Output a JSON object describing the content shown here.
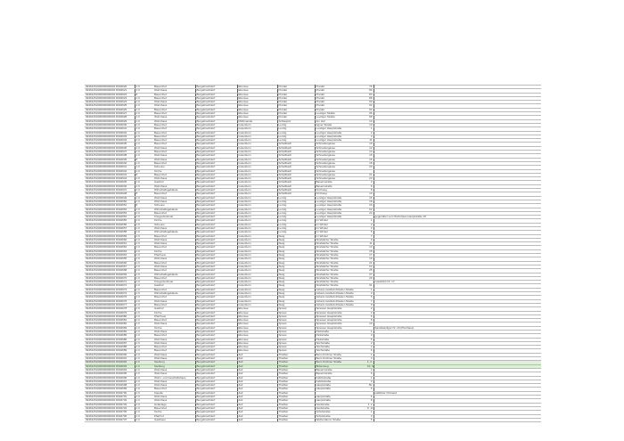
{
  "columns": [
    "ID",
    "Nr",
    "Objekt",
    "Gemeinde",
    "Gemeindeteil",
    "Ort",
    "Straße",
    "Hausnr.",
    "Bemerkung"
  ],
  "rows": [
    [
      "09461151000000000002 D994620",
      "1.0",
      "Bauernhof",
      "Burgebrachdorf",
      "Ebersee",
      "Preidel",
      "Preidel",
      "76",
      ""
    ],
    [
      "09461151000000000002 D994621",
      "1.0",
      "Wohnhaus",
      "Burgebrachdorf",
      "Ebersee",
      "Preidel",
      "Preidel",
      "80",
      ""
    ],
    [
      "09461151000000000002 D994622",
      "8",
      "Bauernhof",
      "Burgebrachdorf",
      "Ebersee",
      "Preidel",
      "Preidel",
      "83",
      ""
    ],
    [
      "09461151000000000002 D994623",
      "1.0",
      "Bauernhof",
      "Burgebrachdorf",
      "Ebersee",
      "Preidel",
      "Preidel",
      "88",
      ""
    ],
    [
      "09461151000000000002 D994624",
      "1.0",
      "Wohnhaus",
      "Burgebrachdorf",
      "Ebersee",
      "Preidel",
      "Preidel",
      "90",
      ""
    ],
    [
      "09461151000000000002 D994625",
      "1.0",
      "Wohnhaus",
      "Burgebrachdorf",
      "Ebersee",
      "Preidel",
      "Preidel",
      "92",
      ""
    ],
    [
      "09461151000000000002 D994626",
      "1.0",
      "Bauernhof",
      "Burgebrachdorf",
      "Ebersee",
      "Preidel",
      "Preidel",
      "94",
      ""
    ],
    [
      "09461151000000000002 D994627",
      "1.0",
      "Bauernhof",
      "Burgebrachdorf",
      "Ebersee",
      "Preidel",
      "Leuziger Straße",
      "96",
      ""
    ],
    [
      "09461151000000000002 D994628",
      "1.0",
      "Wohnhaus",
      "Burgebrachdorf",
      "Ebersee",
      "Preidel",
      "Leuziger Straße",
      "98",
      ""
    ],
    [
      "09461151000000000002 D994629",
      "1.0",
      "Wohnhaus",
      "Burgebrachdorf",
      "Mühlmande",
      "Schlaupitz",
      "Am Hof",
      "13",
      ""
    ],
    [
      "09461151000000000002 D994630",
      "1.0",
      "Bauernhof",
      "Burgebrachdorf",
      "Gutenborn",
      "Lenzig",
      "Agner Straße",
      "10",
      ""
    ],
    [
      "09461151000000000002 D994631",
      "1.0",
      "Bauernhof",
      "Burgebrachdorf",
      "Gutenborn",
      "Lenzig",
      "Leuziger Hauptstraße",
      "1",
      ""
    ],
    [
      "09461151000000000002 D994632",
      "1.0",
      "Bauernhof",
      "Burgebrachdorf",
      "Gutenborn",
      "Lenzig",
      "Leuziger Hauptstraße",
      "2",
      ""
    ],
    [
      "09461151000000000002 D994633",
      "1.0",
      "Bauernhof",
      "Burgebrachdorf",
      "Gutenborn",
      "Lenzig",
      "Leuziger Hauptstraße",
      "4",
      ""
    ],
    [
      "09461151000000000002 D994634",
      "1.0",
      "Bauernhof",
      "Burgebrachdorf",
      "Gutenborn",
      "Lenzig",
      "Leuziger Hauptstraße",
      "11",
      ""
    ],
    [
      "09461151000000000002 D994635",
      "1.0",
      "Bauernhof",
      "Burgebrachdorf",
      "Gutenborn",
      "Schellbach",
      "Schneidergasse",
      "10",
      ""
    ],
    [
      "09461151000000000002 D994636",
      "1.0",
      "Wohnhaus",
      "Burgebrachdorf",
      "Gutenborn",
      "Schellbach",
      "Schneidergasse",
      "12",
      ""
    ],
    [
      "09461151000000000002 D994637",
      "1.0",
      "Bauernhof",
      "Burgebrachdorf",
      "Gutenborn",
      "Schellbach",
      "Schneidergasse",
      "14",
      ""
    ],
    [
      "09461151000000000002 D994638",
      "1.0",
      "Wohnhaus",
      "Burgebrachdorf",
      "Gutenborn",
      "Schellbach",
      "Schneidergasse",
      "15",
      ""
    ],
    [
      "09461151000000000002 D994639",
      "8",
      "Wohnhaus",
      "Burgebrachdorf",
      "Gutenborn",
      "Schellbach",
      "Schneidergasse",
      "16",
      ""
    ],
    [
      "09461151000000000002 D994640",
      "1.0",
      "Bauernhof",
      "Burgebrachdorf",
      "Gutenborn",
      "Schellbach",
      "Schneidergasse",
      "18",
      ""
    ],
    [
      "09461151000000000002 D994641",
      "1.0",
      "Scheune",
      "Burgebrachdorf",
      "Gutenborn",
      "Schellbach",
      "Schneidergasse",
      "20",
      ""
    ],
    [
      "09461151000000000002 D994642",
      "1.0",
      "Kirche",
      "Burgebrachdorf",
      "Gutenborn",
      "Schellbach",
      "Schneidergasse",
      "",
      ""
    ],
    [
      "09461151000000000002 D994643",
      "8",
      "Bauernhof",
      "Burgebrachdorf",
      "Gutenborn",
      "Schellbach",
      "Schneidergasse",
      "21",
      ""
    ],
    [
      "09461151000000000002 D994644",
      "1.0",
      "Wohnhaus",
      "Burgebrachdorf",
      "Gutenborn",
      "Schellbach",
      "Schneidergasse",
      "23",
      ""
    ],
    [
      "09461151000000000002 D994645",
      "1.0",
      "Gasthof",
      "Burgebrachdorf",
      "Gutenborn",
      "Schellbach",
      "Bauernstraße",
      "3",
      ""
    ],
    [
      "09461151000000000002 D994646",
      "1.0",
      "Wohnhaus",
      "Burgebrachdorf",
      "Gutenborn",
      "Schellbach",
      "Bauernstraße",
      "6",
      ""
    ],
    [
      "09461151000000000002 D994647",
      "1.0",
      "Wirtschaftsgebäude",
      "Burgebrachdorf",
      "Gutenborn",
      "Schellbach",
      "Kirchweg",
      "8",
      ""
    ],
    [
      "09461151000000000002 D994648",
      "8",
      "Bauernhof",
      "Burgebrachdorf",
      "Gutenborn",
      "Schellbach",
      "Kirchweg",
      "10",
      ""
    ],
    [
      "09461151000000000002 D994649",
      "1.0",
      "Wohnhaus",
      "Burgebrachdorf",
      "Gutenborn",
      "Lenzig",
      "Leuziger Hauptstraße",
      "16",
      ""
    ],
    [
      "09461151000000000002 D994650",
      "1.0",
      "Wohnhaus",
      "Burgebrachdorf",
      "Gutenborn",
      "Lenzig",
      "Leuziger Hauptstraße",
      "18",
      ""
    ],
    [
      "09461151000000000002 D994651",
      "8",
      "Scheune",
      "Burgebrachdorf",
      "Gutenborn",
      "Lenzig",
      "Leuziger Hauptstraße",
      "20",
      ""
    ],
    [
      "09461151000000000002 D994652",
      "1.0",
      "Wirtschaftsgebäude",
      "Burgebrachdorf",
      "Gutenborn",
      "Lenzig",
      "Leuziger Hauptstraße",
      "22",
      ""
    ],
    [
      "09461151000000000002 D994653",
      "1.0",
      "Bauernhof",
      "Burgebrachdorf",
      "Gutenborn",
      "Lenzig",
      "Leuziger Hauptstraße",
      "24",
      ""
    ],
    [
      "09461151000000000002 D994654",
      "1.0",
      "Kriegerdenkmal",
      "Burgebrachdorf",
      "Gutenborn",
      "Lenzig",
      "Leuziger Hauptstraße",
      "",
      "gegenüber vom Wohnhaus Hauptstraße 16"
    ],
    [
      "09461151000000000002 D994655",
      "1.0",
      "Kirche",
      "Burgebrachdorf",
      "Gutenborn",
      "Lenzig",
      "Im Winkel",
      "1",
      ""
    ],
    [
      "09461151000000000002 D994656",
      "1.0",
      "Scheune",
      "Burgebrachdorf",
      "Gutenborn",
      "Lenzig",
      "Im Winkel",
      "2",
      ""
    ],
    [
      "09461151000000000002 D994657",
      "1.0",
      "Wohnhaus",
      "Burgebrachdorf",
      "Gutenborn",
      "Lenzig",
      "Im Winkel",
      "3",
      ""
    ],
    [
      "09461151000000000002 D994658",
      "1.0",
      "Wirtschaftsgebäude",
      "Burgebrachdorf",
      "Gutenborn",
      "Lenzig",
      "Im Winkel",
      "5",
      ""
    ],
    [
      "09461151000000000002 D994659",
      "1.0",
      "Bauernhof",
      "Burgebrachdorf",
      "Gutenborn",
      "Steig",
      "Im Winkel",
      "7",
      ""
    ],
    [
      "09461151000000000002 D994660",
      "1.0",
      "Wohnhaus",
      "Burgebrachdorf",
      "Gutenborn",
      "Steig",
      "Straßdorfer Straße",
      "9",
      ""
    ],
    [
      "09461151000000000002 D994661",
      "1.0",
      "Wohnhaus",
      "Burgebrachdorf",
      "Gutenborn",
      "Steig",
      "Straßdorfer Straße",
      "11",
      ""
    ],
    [
      "09461151000000000002 D994662",
      "1.0",
      "Bauernhof",
      "Burgebrachdorf",
      "Gutenborn",
      "Steig",
      "Straßdorfer Straße",
      "13",
      ""
    ],
    [
      "09461151000000000002 D994663",
      "1.0",
      "Kirche",
      "Burgebrachdorf",
      "Gutenborn",
      "Steig",
      "Straßdorfer Straße",
      "15",
      ""
    ],
    [
      "09461151000000000002 D994664",
      "1.0",
      "Pfarrhaus",
      "Burgebrachdorf",
      "Gutenborn",
      "Steig",
      "Straßdorfer Straße",
      "17",
      ""
    ],
    [
      "09461151000000000002 D994665",
      "1.0",
      "Wohnhaus",
      "Burgebrachdorf",
      "Gutenborn",
      "Steig",
      "Straßdorfer Straße",
      "19",
      ""
    ],
    [
      "09461151000000000002 D994666",
      "1.0",
      "Bauernhof",
      "Burgebrachdorf",
      "Gutenborn",
      "Steig",
      "Straßdorfer Straße",
      "21",
      ""
    ],
    [
      "09461151000000000002 D994667",
      "1.0",
      "Wohnhaus",
      "Burgebrachdorf",
      "Gutenborn",
      "Steig",
      "Straßdorfer Straße",
      "23",
      ""
    ],
    [
      "09461151000000000002 D994668",
      "1.0",
      "Bauernhof",
      "Burgebrachdorf",
      "Gutenborn",
      "Steig",
      "Straßdorfer Straße",
      "25",
      ""
    ],
    [
      "09461151000000000002 D994669",
      "1.0",
      "Wirtschaftsgebäude",
      "Burgebrachdorf",
      "Gutenborn",
      "Steig",
      "Straßdorfer Straße",
      "27",
      ""
    ],
    [
      "09461151000000000002 D994670",
      "1.0",
      "Bauernhof",
      "Burgebrachdorf",
      "Gutenborn",
      "Steig",
      "Straßdorfer Straße",
      "29",
      ""
    ],
    [
      "09461151000000000002 D994671",
      "1.0",
      "Kriegerdenkmal",
      "Burgebrachdorf",
      "Gutenborn",
      "Steig",
      "Straßdorfer Straße",
      "",
      "zusätzlich Nr. 17"
    ],
    [
      "09461151000000000002 D994672",
      "1.0",
      "Gasthof",
      "Burgebrachdorf",
      "Gutenborn",
      "Steig",
      "Straßdorfer Straße",
      "31",
      ""
    ],
    [
      "09461151000000000002 D994673",
      "1.0",
      "Bauernhof",
      "Burgebrachdorf",
      "Gutenborn",
      "Steig",
      "Johann-Gottlieb-Rössler-Straße",
      "1",
      ""
    ],
    [
      "09461151000000000002 D994674",
      "1.0",
      "Wirtschaftsgebäude",
      "Burgebrachdorf",
      "Gutenborn",
      "Steig",
      "Johann-Gottlieb-Rössler-Straße",
      "3",
      ""
    ],
    [
      "09461151000000000002 D994675",
      "1.0",
      "Bauernhof",
      "Burgebrachdorf",
      "Gutenborn",
      "Steig",
      "Johann-Gottlieb-Rössler-Straße",
      "5",
      ""
    ],
    [
      "09461151000000000002 D994676",
      "1.0",
      "Wohnhaus",
      "Burgebrachdorf",
      "Gutenborn",
      "Steig",
      "Johann-Gottlieb-Rössler-Straße",
      "7",
      ""
    ],
    [
      "09461151000000000002 D994677",
      "1.0",
      "Bauernhof",
      "Burgebrachdorf",
      "Gutenborn",
      "Steig",
      "Johann-Gottlieb-Rössler-Straße",
      "9",
      ""
    ],
    [
      "09461151000000000002 D994678",
      "1.0",
      "Gasthof",
      "Burgebrachdorf",
      "Ebersee",
      "Spiess",
      "Spiesser Hauptstraße",
      "2",
      ""
    ],
    [
      "09461151000000000002 D994679",
      "1.0",
      "Kirche",
      "Burgebrachdorf",
      "Ebersee",
      "Spiess",
      "Spiesser Hauptstraße",
      "4",
      ""
    ],
    [
      "09461151000000000002 D994680",
      "1.0",
      "Pfarrhaus",
      "Burgebrachdorf",
      "Ebersee",
      "Spiess",
      "Spiesser Hauptstraße",
      "6",
      ""
    ],
    [
      "09461151000000000002 D994681",
      "1.0",
      "Bauernhof",
      "Burgebrachdorf",
      "Ebersee",
      "Spiess",
      "Spiesser Hauptstraße",
      "8",
      ""
    ],
    [
      "09461151000000000002 D994682",
      "1.0",
      "Wohnhaus",
      "Burgebrachdorf",
      "Ebersee",
      "Spiess",
      "Spiesser Hauptstraße",
      "10",
      ""
    ],
    [
      "09461151000000000002 D994683",
      "1.0",
      "Kirche",
      "Burgebrachdorf",
      "Ebersee",
      "Spiess",
      "Spiesser Hauptstraße",
      "",
      "Sandsteinfigur Nr. 20 (Pfarrhaus)"
    ],
    [
      "09461151000000000002 D994684",
      "1.0",
      "Wohnhaus",
      "Burgebrachdorf",
      "Ebersee",
      "Spiess",
      "Parkstraße",
      "1",
      ""
    ],
    [
      "09461151000000000002 D994685",
      "1.0",
      "Bauernhof",
      "Burgebrachdorf",
      "Ebersee",
      "Spiess",
      "Parkstraße",
      "3",
      ""
    ],
    [
      "09461151000000000002 D994686",
      "1.0",
      "Wohnhaus",
      "Burgebrachdorf",
      "Ebersee",
      "Spiess",
      "Parkstraße",
      "5",
      ""
    ],
    [
      "09461151000000000002 D994687",
      "1.0",
      "Wohnhaus",
      "Burgebrachdorf",
      "Ebersee",
      "Spiess",
      "Teichstraße",
      "2",
      ""
    ],
    [
      "09461151000000000002 D994688",
      "1.0",
      "Bauernhof",
      "Burgebrachdorf",
      "Ebersee",
      "Spiess",
      "Teichstraße",
      "4",
      ""
    ],
    [
      "09461151000000000002 D994689",
      "1.0",
      "Bauernhof",
      "Burgebrachdorf",
      "Ebersee",
      "Spiess",
      "Teichstraße",
      "6",
      ""
    ],
    [
      "09461151000000000002 D994690",
      "1.0",
      "Wohnhaus",
      "Burgebrachdorf",
      "Zeil",
      "Theilber",
      "Beim Kirchner Straße",
      "1",
      ""
    ],
    [
      "09461151000000000002 D994691",
      "1.0",
      "Wohnhaus",
      "Burgebrachdorf",
      "Zeil",
      "Theilber",
      "Beim Kirchner Straße",
      "3",
      ""
    ],
    [
      "09461151000000000002 D994692",
      "1.0",
      "Siedlung",
      "Burgebrachdorf",
      "Zeil",
      "Theilber",
      "Beim Kirchner Straße",
      "1, 2, 3, 4, 5, 6, 7, 8",
      ""
    ],
    [
      "09461151000000000002 D994693",
      "1.0",
      "Siedlung",
      "Burgebrachdorf",
      "Zeil",
      "Theilber",
      "Birkenweg",
      "10, 10, 11",
      ""
    ],
    [
      "09461151000000000002 D994694",
      "1.0",
      "Wohnhaus",
      "Burgebrachdorf",
      "Zeil",
      "Theilber",
      "Bauernstraße",
      "4",
      ""
    ],
    [
      "09461151000000000002 D994695",
      "1.0",
      "Wohnhaus",
      "Burgebrachdorf",
      "Zeil",
      "Theilber",
      "Bauernstraße",
      "6",
      ""
    ],
    [
      "09461151000000000002 D994696",
      "1.0",
      "Wohn- und Geschäftshaus",
      "Burgebrachdorf",
      "Zeil",
      "Theilber",
      "Fabrikstraße",
      "1",
      ""
    ],
    [
      "09461151000000000002 D994697",
      "1.0",
      "Wohnhaus",
      "Burgebrachdorf",
      "Zeil",
      "Theilber",
      "Fabrikstraße",
      "3",
      ""
    ],
    [
      "09461151000000000002 D994698",
      "1.0",
      "Wohnhaus",
      "Burgebrachdorf",
      "Zeil",
      "Theilber",
      "Hauptstraße",
      "Bs",
      ""
    ],
    [
      "09461151000000000002 D994699",
      "1.0",
      "Bauernhof",
      "Burgebrachdorf",
      "Zeil",
      "Theilber",
      "Hauptstraße",
      "5",
      ""
    ],
    [
      "09461151000000000002 D994700",
      "1.0",
      "Kapelle",
      "Burgebrachdorf",
      "Zeil",
      "Theilber",
      "",
      "",
      "südlicher Ortsrand"
    ],
    [
      "09461151000000000002 D994701",
      "1.0",
      "Wohnhaus",
      "Burgebrachdorf",
      "Zeil",
      "Theilber",
      "Hauptstraße",
      "6",
      ""
    ],
    [
      "09461151000000000002 D994702",
      "1.0",
      "Wohnhaus",
      "Burgebrachdorf",
      "Zeil",
      "Theilber",
      "Hauptstraße",
      "8",
      ""
    ],
    [
      "09461151000000000002 D994703",
      "1.0",
      "Hofanlage",
      "Burgebrachdorf",
      "Zeil",
      "Theilber",
      "Nordstraße",
      "1, 2",
      ""
    ],
    [
      "09461151000000000002 D994704",
      "1.0",
      "Bauernhof",
      "Burgebrachdorf",
      "Zeil",
      "Theilber",
      "Nordstraße",
      "9, 11",
      ""
    ],
    [
      "09461151000000000002 D994705",
      "1.0",
      "Kirche",
      "Burgebrachdorf",
      "Zeil",
      "Theilber",
      "Schulstraße",
      "1",
      ""
    ],
    [
      "09461151000000000002 D994706",
      "1.0",
      "Pfarrhof",
      "Burgebrachdorf",
      "Zeil",
      "Theilber",
      "Schulstraße",
      "3",
      ""
    ],
    [
      "09461151000000000002 D994707",
      "1.0",
      "Gasthaus",
      "Burgebrachdorf",
      "Zeil",
      "Theilber",
      "Weiherdamm Straße",
      "5",
      ""
    ]
  ],
  "highlight_rows": [
    72,
    73
  ],
  "highlight_color": "#dff0d8"
}
